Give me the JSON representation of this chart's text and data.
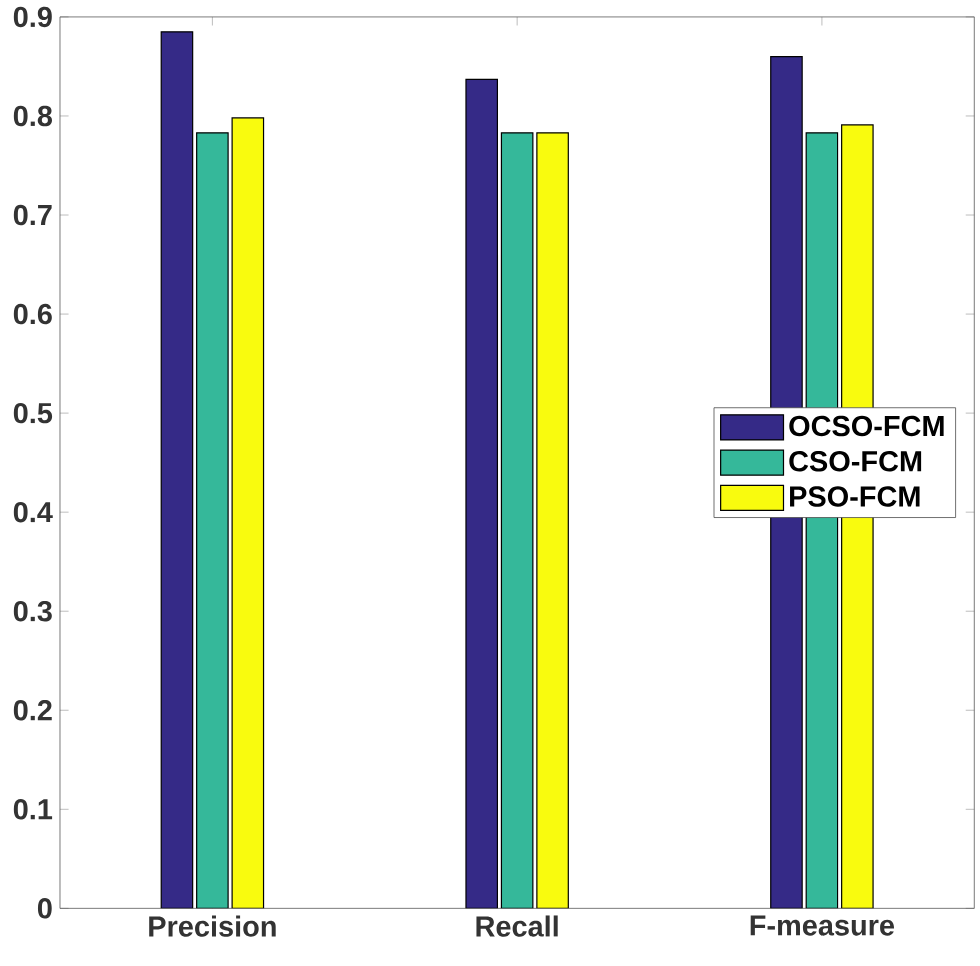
{
  "chart_data": {
    "type": "bar",
    "categories": [
      "Precision",
      "Recall",
      "F-measure"
    ],
    "series": [
      {
        "name": "OCSO-FCM",
        "color": "#352a87",
        "values": [
          0.885,
          0.837,
          0.86
        ]
      },
      {
        "name": "CSO-FCM",
        "color": "#35b89a",
        "values": [
          0.783,
          0.783,
          0.783
        ]
      },
      {
        "name": "PSO-FCM",
        "color": "#f9fb0e",
        "values": [
          0.798,
          0.783,
          0.791
        ]
      }
    ],
    "ylim": [
      0,
      0.9
    ],
    "yticks": [
      0,
      0.1,
      0.2,
      0.3,
      0.4,
      0.5,
      0.6,
      0.7,
      0.8,
      0.9
    ],
    "legend": "right"
  }
}
